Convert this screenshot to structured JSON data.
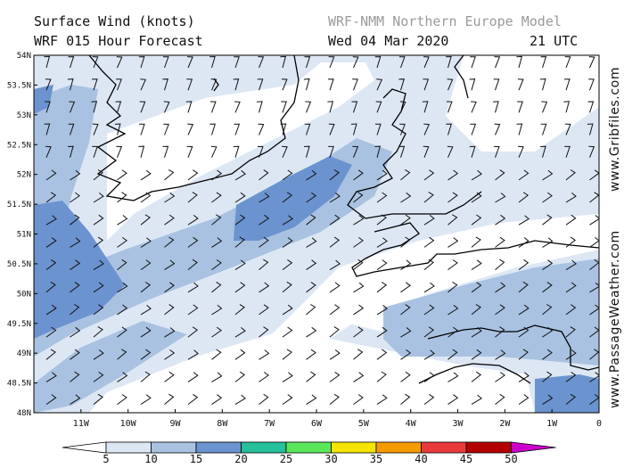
{
  "header": {
    "title_line1": "Surface Wind (knots)",
    "title_line2": "WRF 015 Hour Forecast",
    "model": "WRF-NMM Northern Europe Model",
    "date": "Wed 04 Mar 2020",
    "time": "21 UTC"
  },
  "sidebar": {
    "gribfiles": "www.Gribfiles.com",
    "passageweather": "www.PassageWeather.com"
  },
  "map": {
    "lat_labels": [
      "54N",
      "53.5N",
      "53N",
      "52.5N",
      "52N",
      "51.5N",
      "51N",
      "50.5N",
      "50N",
      "49.5N",
      "49N",
      "48.5N",
      "48N"
    ],
    "lon_labels": [
      "11W",
      "10W",
      "9W",
      "8W",
      "7W",
      "6W",
      "5W",
      "4W",
      "3W",
      "2W",
      "1W",
      "0"
    ],
    "lon_range": [
      -12,
      0
    ],
    "lat_range": [
      48,
      54
    ]
  },
  "legend": {
    "ticks": [
      "5",
      "10",
      "15",
      "20",
      "25",
      "30",
      "35",
      "40",
      "45",
      "50"
    ],
    "colors": [
      "#dde7f4",
      "#a9c2e2",
      "#6b93cf",
      "#26c09a",
      "#5ae65a",
      "#f5e400",
      "#f59a00",
      "#e83a3a",
      "#b30000",
      "#cc00cc"
    ],
    "low_color": "#ffffff"
  }
}
